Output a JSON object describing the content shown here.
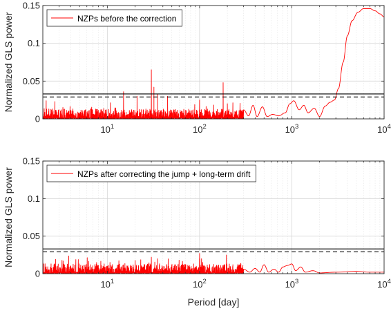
{
  "chart_data": [
    {
      "type": "line",
      "xscale": "log",
      "xlim": [
        2,
        10000
      ],
      "ylim": [
        0,
        0.15
      ],
      "xticks": [
        10,
        100,
        1000,
        10000
      ],
      "xtick_labels": [
        {
          "base": "10",
          "exp": "1"
        },
        {
          "base": "10",
          "exp": "2"
        },
        {
          "base": "10",
          "exp": "3"
        },
        {
          "base": "10",
          "exp": "4"
        }
      ],
      "yticks": [
        0,
        0.05,
        0.1,
        0.15
      ],
      "ytick_labels": [
        "0",
        "0.05",
        "0.1",
        "0.15"
      ],
      "xlabel": "",
      "ylabel": "Normalized GLS power",
      "grid": true,
      "legend_position": "top-left",
      "series": [
        {
          "name": "NZPs before the correction",
          "color": "#ff0000",
          "noise_level": 0.006,
          "spikes": [
            [
              15,
              0.036
            ],
            [
              21,
              0.03
            ],
            [
              30,
              0.065
            ],
            [
              32,
              0.042
            ],
            [
              35,
              0.033
            ],
            [
              45,
              0.03
            ],
            [
              100,
              0.025
            ],
            [
              180,
              0.048
            ],
            [
              200,
              0.02
            ]
          ],
          "curve": [
            [
              300,
              0.012
            ],
            [
              340,
              0.004
            ],
            [
              380,
              0.018
            ],
            [
              420,
              0.003
            ],
            [
              480,
              0.016
            ],
            [
              540,
              0.003
            ],
            [
              620,
              0.006
            ],
            [
              720,
              0.004
            ],
            [
              850,
              0.008
            ],
            [
              950,
              0.02
            ],
            [
              1050,
              0.024
            ],
            [
              1200,
              0.012
            ],
            [
              1350,
              0.018
            ],
            [
              1500,
              0.008
            ],
            [
              1750,
              0.014
            ],
            [
              2000,
              0.003
            ],
            [
              2300,
              0.017
            ],
            [
              2600,
              0.022
            ],
            [
              2900,
              0.025
            ],
            [
              3200,
              0.04
            ],
            [
              3600,
              0.075
            ],
            [
              4000,
              0.11
            ],
            [
              4500,
              0.13
            ],
            [
              5200,
              0.141
            ],
            [
              6000,
              0.146
            ],
            [
              7000,
              0.146
            ],
            [
              8000,
              0.143
            ],
            [
              9000,
              0.139
            ],
            [
              10000,
              0.135
            ]
          ]
        }
      ],
      "threshold_lines": [
        {
          "y": 0.033,
          "style": "solid",
          "color": "#000000"
        },
        {
          "y": 0.029,
          "style": "dashed",
          "color": "#000000"
        }
      ]
    },
    {
      "type": "line",
      "xscale": "log",
      "xlim": [
        2,
        10000
      ],
      "ylim": [
        0,
        0.15
      ],
      "xticks": [
        10,
        100,
        1000,
        10000
      ],
      "xtick_labels": [
        {
          "base": "10",
          "exp": "1"
        },
        {
          "base": "10",
          "exp": "2"
        },
        {
          "base": "10",
          "exp": "3"
        },
        {
          "base": "10",
          "exp": "4"
        }
      ],
      "yticks": [
        0,
        0.05,
        0.1,
        0.15
      ],
      "ytick_labels": [
        "0",
        "0.05",
        "0.1",
        "0.15"
      ],
      "xlabel": "Period [day]",
      "ylabel": "Normalized GLS power",
      "grid": true,
      "legend_position": "top-left",
      "series": [
        {
          "name": "NZPs after correcting the jump + long-term drift",
          "color": "#ff0000",
          "noise_level": 0.006,
          "spikes": [
            [
              30,
              0.022
            ],
            [
              35,
              0.02
            ],
            [
              60,
              0.018
            ],
            [
              100,
              0.027
            ],
            [
              105,
              0.02
            ]
          ],
          "curve": [
            [
              300,
              0.006
            ],
            [
              350,
              0.002
            ],
            [
              400,
              0.007
            ],
            [
              450,
              0.002
            ],
            [
              500,
              0.012
            ],
            [
              560,
              0.002
            ],
            [
              640,
              0.006
            ],
            [
              720,
              0.002
            ],
            [
              800,
              0.009
            ],
            [
              900,
              0.011
            ],
            [
              1000,
              0.013
            ],
            [
              1100,
              0.004
            ],
            [
              1250,
              0.009
            ],
            [
              1400,
              0.002
            ],
            [
              1700,
              0.004
            ],
            [
              2000,
              0.001
            ],
            [
              3000,
              0.002
            ],
            [
              5000,
              0.003
            ],
            [
              7000,
              0.002
            ],
            [
              10000,
              0.002
            ]
          ]
        }
      ],
      "threshold_lines": [
        {
          "y": 0.033,
          "style": "solid",
          "color": "#000000"
        },
        {
          "y": 0.029,
          "style": "dashed",
          "color": "#000000"
        }
      ]
    }
  ]
}
